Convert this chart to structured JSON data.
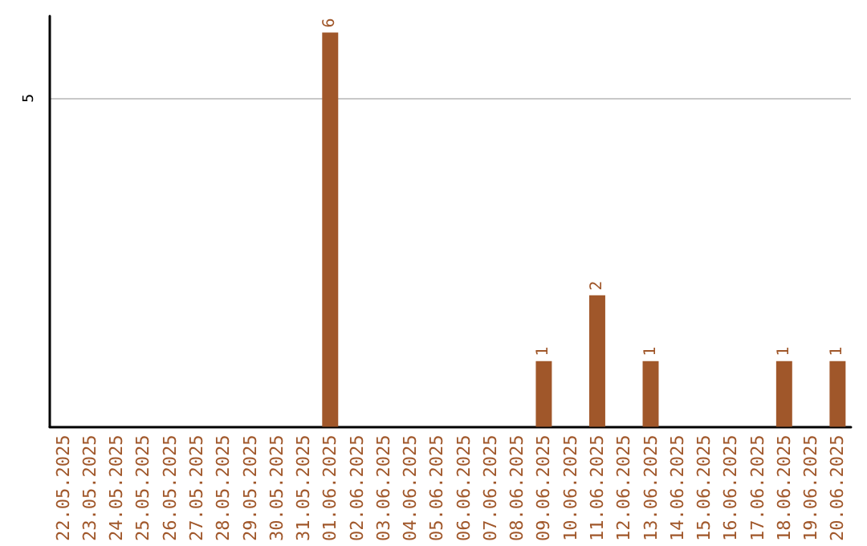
{
  "chart_data": {
    "type": "bar",
    "categories": [
      "22.05.2025",
      "23.05.2025",
      "24.05.2025",
      "25.05.2025",
      "26.05.2025",
      "27.05.2025",
      "28.05.2025",
      "29.05.2025",
      "30.05.2025",
      "31.05.2025",
      "01.06.2025",
      "02.06.2025",
      "03.06.2025",
      "04.06.2025",
      "05.06.2025",
      "06.06.2025",
      "07.06.2025",
      "08.06.2025",
      "09.06.2025",
      "10.06.2025",
      "11.06.2025",
      "12.06.2025",
      "13.06.2025",
      "14.06.2025",
      "15.06.2025",
      "16.06.2025",
      "17.06.2025",
      "18.06.2025",
      "19.06.2025",
      "20.06.2025"
    ],
    "values": [
      0,
      0,
      0,
      0,
      0,
      0,
      0,
      0,
      0,
      0,
      6,
      0,
      0,
      0,
      0,
      0,
      0,
      0,
      1,
      0,
      2,
      0,
      1,
      0,
      0,
      0,
      0,
      1,
      0,
      1
    ],
    "value_labels": [
      null,
      null,
      null,
      null,
      null,
      null,
      null,
      null,
      null,
      null,
      "6",
      null,
      null,
      null,
      null,
      null,
      null,
      null,
      "1",
      null,
      "2",
      null,
      "1",
      null,
      null,
      null,
      null,
      "1",
      null,
      "1"
    ],
    "color": "#a0572a",
    "ylim": [
      0,
      6.25
    ],
    "yticks": [
      5
    ],
    "grid": "y"
  }
}
